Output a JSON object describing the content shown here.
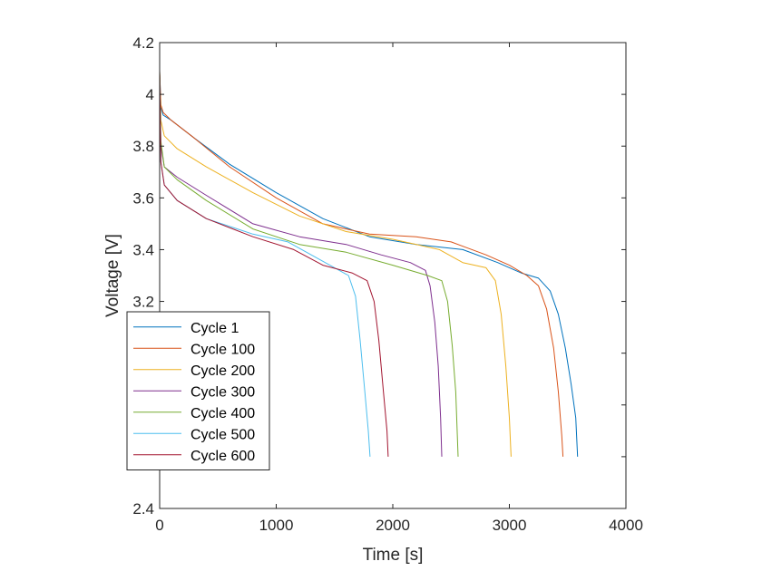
{
  "chart_data": {
    "type": "line",
    "title": "",
    "xlabel": "Time [s]",
    "ylabel": "Voltage [V]",
    "xlim": [
      0,
      4000
    ],
    "ylim": [
      2.4,
      4.2
    ],
    "xticks": [
      0,
      1000,
      2000,
      3000,
      4000
    ],
    "xtick_labels": [
      "0",
      "1000",
      "2000",
      "3000",
      "4000"
    ],
    "yticks": [
      2.4,
      2.6,
      2.8,
      3.0,
      3.2,
      3.4,
      3.6,
      3.8,
      4.0,
      4.2
    ],
    "ytick_labels": [
      "2.4",
      "",
      "",
      "",
      "3.2",
      "3.4",
      "3.6",
      "3.8",
      "4",
      "4.2"
    ],
    "grid": false,
    "legend_position": "lower-left",
    "series": [
      {
        "name": "Cycle 1",
        "color": "#0072BD",
        "points": [
          [
            0,
            4.09
          ],
          [
            10,
            3.95
          ],
          [
            30,
            3.92
          ],
          [
            100,
            3.9
          ],
          [
            300,
            3.83
          ],
          [
            600,
            3.73
          ],
          [
            1000,
            3.62
          ],
          [
            1400,
            3.52
          ],
          [
            1800,
            3.45
          ],
          [
            2200,
            3.42
          ],
          [
            2600,
            3.4
          ],
          [
            2900,
            3.35
          ],
          [
            3100,
            3.31
          ],
          [
            3250,
            3.29
          ],
          [
            3350,
            3.24
          ],
          [
            3420,
            3.15
          ],
          [
            3480,
            3.02
          ],
          [
            3530,
            2.88
          ],
          [
            3570,
            2.75
          ],
          [
            3585,
            2.6
          ]
        ]
      },
      {
        "name": "Cycle 100",
        "color": "#D95319",
        "points": [
          [
            0,
            4.09
          ],
          [
            10,
            3.96
          ],
          [
            30,
            3.93
          ],
          [
            100,
            3.9
          ],
          [
            300,
            3.83
          ],
          [
            600,
            3.72
          ],
          [
            1000,
            3.6
          ],
          [
            1400,
            3.5
          ],
          [
            1800,
            3.46
          ],
          [
            2200,
            3.45
          ],
          [
            2500,
            3.43
          ],
          [
            2800,
            3.38
          ],
          [
            3000,
            3.34
          ],
          [
            3150,
            3.3
          ],
          [
            3250,
            3.26
          ],
          [
            3320,
            3.17
          ],
          [
            3380,
            3.02
          ],
          [
            3420,
            2.85
          ],
          [
            3450,
            2.68
          ],
          [
            3460,
            2.6
          ]
        ]
      },
      {
        "name": "Cycle 200",
        "color": "#EDB120",
        "points": [
          [
            0,
            4.09
          ],
          [
            10,
            3.9
          ],
          [
            40,
            3.84
          ],
          [
            150,
            3.79
          ],
          [
            400,
            3.72
          ],
          [
            800,
            3.62
          ],
          [
            1200,
            3.53
          ],
          [
            1600,
            3.47
          ],
          [
            2000,
            3.44
          ],
          [
            2400,
            3.4
          ],
          [
            2600,
            3.35
          ],
          [
            2800,
            3.33
          ],
          [
            2880,
            3.28
          ],
          [
            2930,
            3.15
          ],
          [
            2970,
            2.95
          ],
          [
            3000,
            2.75
          ],
          [
            3015,
            2.6
          ]
        ]
      },
      {
        "name": "Cycle 300",
        "color": "#7E2F8E",
        "points": [
          [
            0,
            4.08
          ],
          [
            10,
            3.8
          ],
          [
            40,
            3.72
          ],
          [
            150,
            3.68
          ],
          [
            400,
            3.61
          ],
          [
            800,
            3.5
          ],
          [
            1200,
            3.45
          ],
          [
            1600,
            3.42
          ],
          [
            1900,
            3.38
          ],
          [
            2150,
            3.35
          ],
          [
            2280,
            3.32
          ],
          [
            2320,
            3.26
          ],
          [
            2360,
            3.12
          ],
          [
            2390,
            2.95
          ],
          [
            2410,
            2.75
          ],
          [
            2420,
            2.6
          ]
        ]
      },
      {
        "name": "Cycle 400",
        "color": "#77AC30",
        "points": [
          [
            0,
            4.08
          ],
          [
            10,
            3.82
          ],
          [
            40,
            3.72
          ],
          [
            150,
            3.67
          ],
          [
            400,
            3.59
          ],
          [
            800,
            3.48
          ],
          [
            1200,
            3.42
          ],
          [
            1600,
            3.39
          ],
          [
            2000,
            3.34
          ],
          [
            2300,
            3.3
          ],
          [
            2420,
            3.28
          ],
          [
            2470,
            3.2
          ],
          [
            2510,
            3.03
          ],
          [
            2540,
            2.85
          ],
          [
            2560,
            2.6
          ]
        ]
      },
      {
        "name": "Cycle 500",
        "color": "#4DBEEE",
        "points": [
          [
            0,
            4.07
          ],
          [
            10,
            3.74
          ],
          [
            40,
            3.65
          ],
          [
            150,
            3.59
          ],
          [
            400,
            3.52
          ],
          [
            800,
            3.46
          ],
          [
            1100,
            3.43
          ],
          [
            1300,
            3.38
          ],
          [
            1500,
            3.33
          ],
          [
            1620,
            3.3
          ],
          [
            1680,
            3.22
          ],
          [
            1720,
            3.05
          ],
          [
            1760,
            2.85
          ],
          [
            1790,
            2.7
          ],
          [
            1805,
            2.6
          ]
        ]
      },
      {
        "name": "Cycle 600",
        "color": "#A2142F",
        "points": [
          [
            0,
            4.08
          ],
          [
            10,
            3.74
          ],
          [
            40,
            3.65
          ],
          [
            150,
            3.59
          ],
          [
            400,
            3.52
          ],
          [
            800,
            3.45
          ],
          [
            1150,
            3.4
          ],
          [
            1400,
            3.34
          ],
          [
            1650,
            3.31
          ],
          [
            1780,
            3.28
          ],
          [
            1840,
            3.2
          ],
          [
            1880,
            3.05
          ],
          [
            1920,
            2.85
          ],
          [
            1950,
            2.7
          ],
          [
            1960,
            2.6
          ]
        ]
      }
    ]
  }
}
